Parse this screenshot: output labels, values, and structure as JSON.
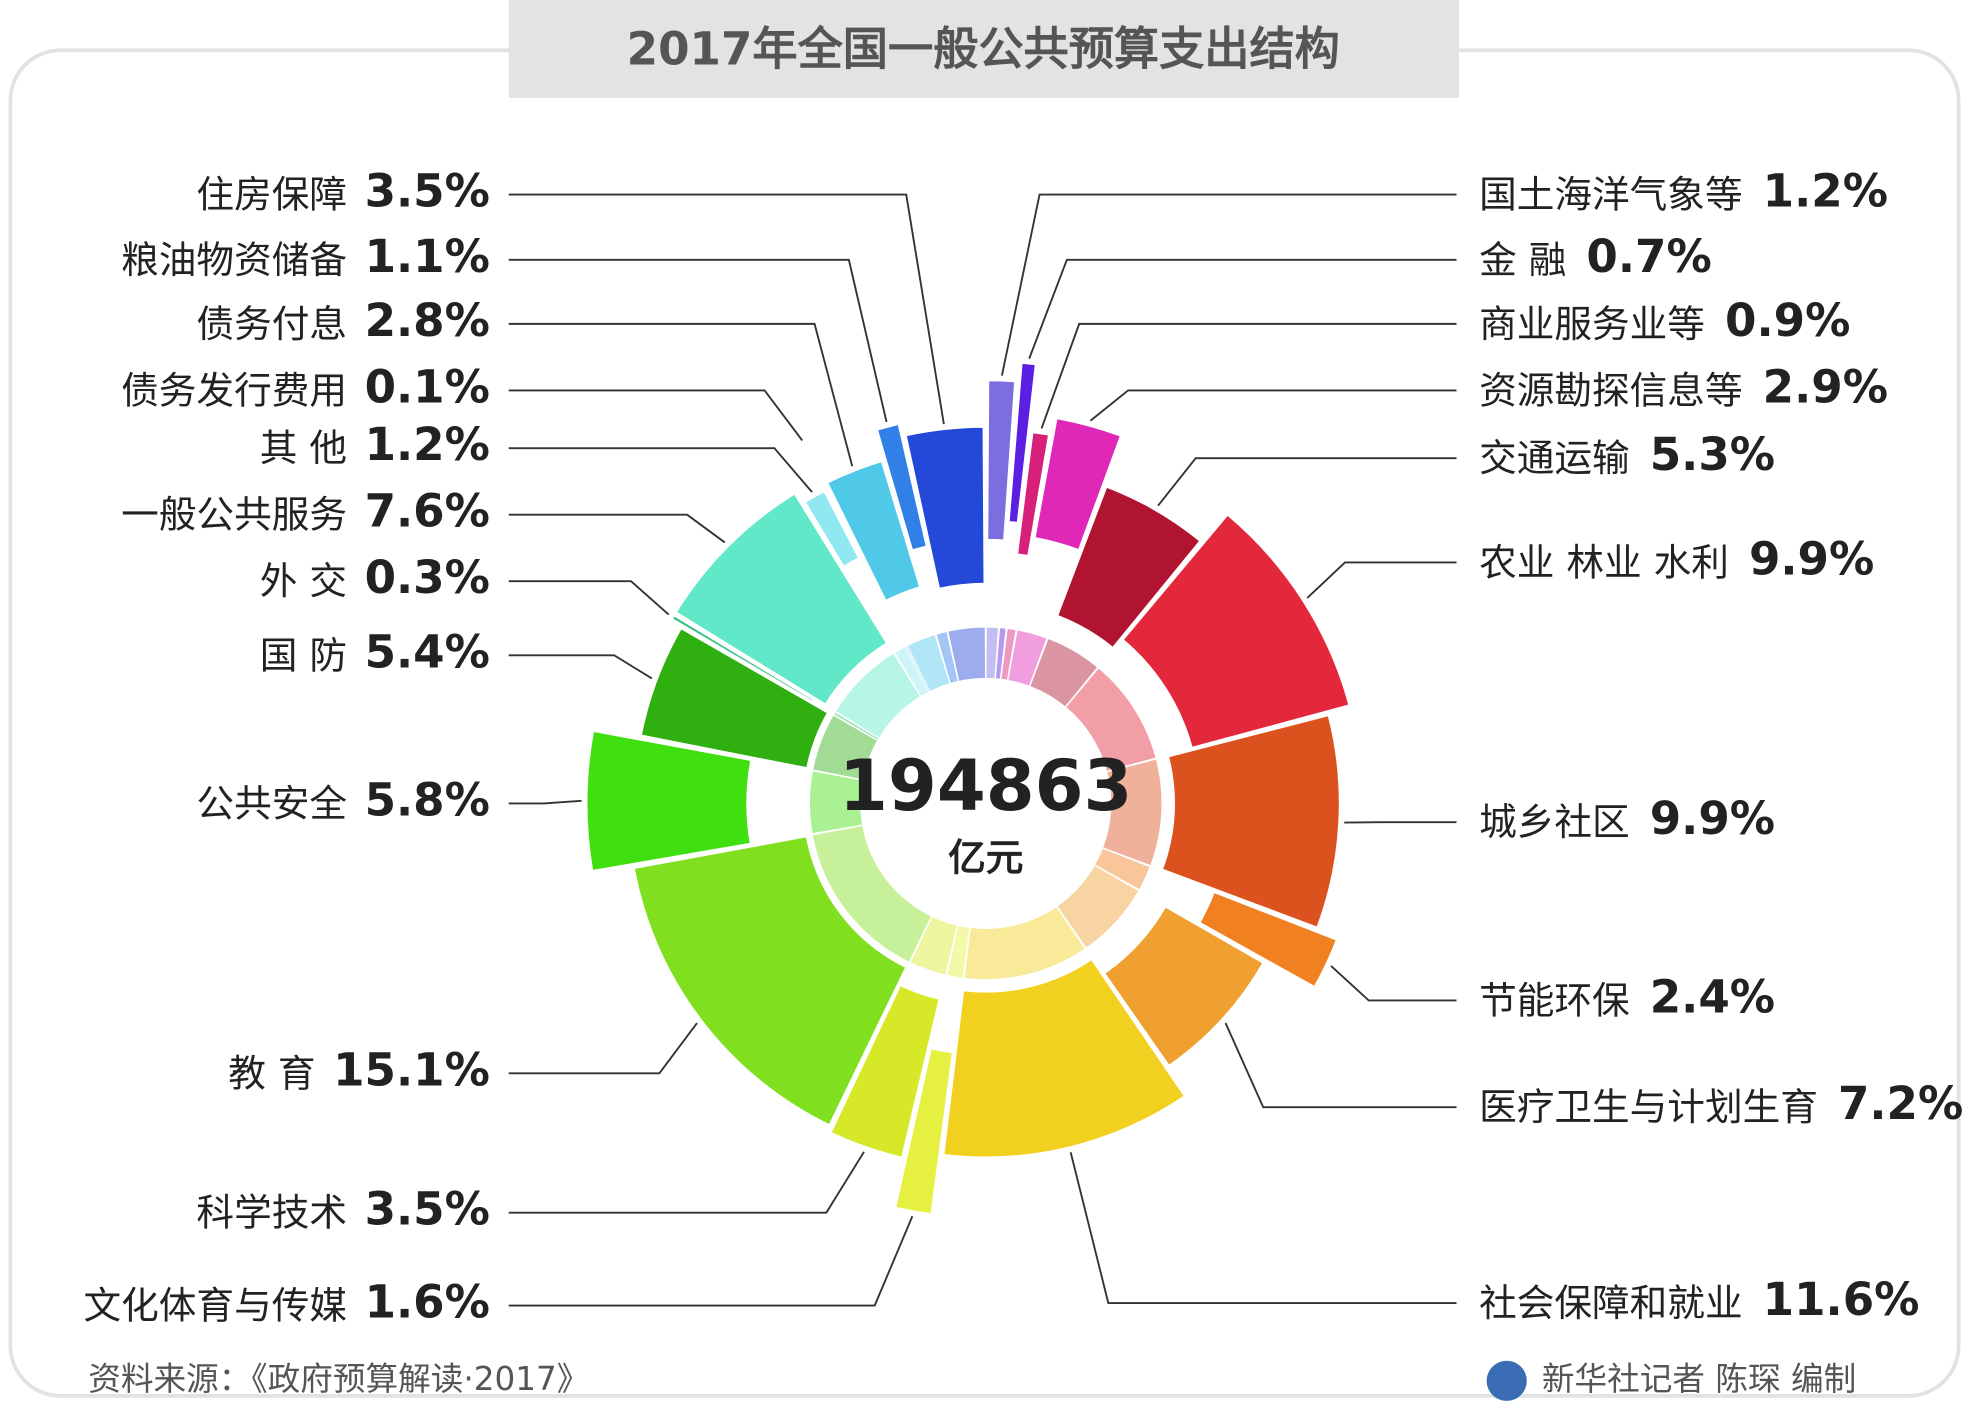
{
  "chart_data": {
    "type": "pie",
    "title": "2017年全国一般公共预算支出结构",
    "total": "194863",
    "total_unit": "亿元",
    "categories": [
      "国土海洋气象等",
      "金 融",
      "商业服务业等",
      "资源勘探信息等",
      "交通运输",
      "农业 林业 水利",
      "城乡社区",
      "节能环保",
      "医疗卫生与计划生育",
      "社会保障和就业",
      "文化体育与传媒",
      "科学技术",
      "教 育",
      "公共安全",
      "国 防",
      "外 交",
      "一般公共服务",
      "其 他",
      "债务发行费用",
      "债务付息",
      "粮油物资储备",
      "住房保障"
    ],
    "values": [
      1.2,
      0.7,
      0.9,
      2.9,
      5.3,
      9.9,
      9.9,
      2.4,
      7.2,
      11.6,
      1.6,
      3.5,
      15.1,
      5.8,
      5.4,
      0.3,
      7.6,
      1.2,
      0.1,
      2.8,
      1.1,
      3.5
    ],
    "value_labels": [
      "1.2%",
      "0.7%",
      "0.9%",
      "2.9%",
      "5.3%",
      "9.9%",
      "9.9%",
      "2.4%",
      "7.2%",
      "11.6%",
      "1.6%",
      "3.5%",
      "15.1%",
      "5.8%",
      "5.4%",
      "0.3%",
      "7.6%",
      "1.2%",
      "0.1%",
      "2.8%",
      "1.1%",
      "3.5%"
    ],
    "colors": [
      "#7b6fe0",
      "#5a1fe0",
      "#d6207a",
      "#e028b8",
      "#b01430",
      "#e2283a",
      "#dc521e",
      "#f08020",
      "#f0a030",
      "#f2d020",
      "#e6f040",
      "#d6e828",
      "#80e020",
      "#40e010",
      "#30b010",
      "#30c080",
      "#60e8c8",
      "#90e8f0",
      "#30b0e0",
      "#50c8e8",
      "#3080e8",
      "#2448d8"
    ],
    "source": "资料来源：《政府预算解读·2017》",
    "credit": "新华社记者 陈琛 编制"
  }
}
